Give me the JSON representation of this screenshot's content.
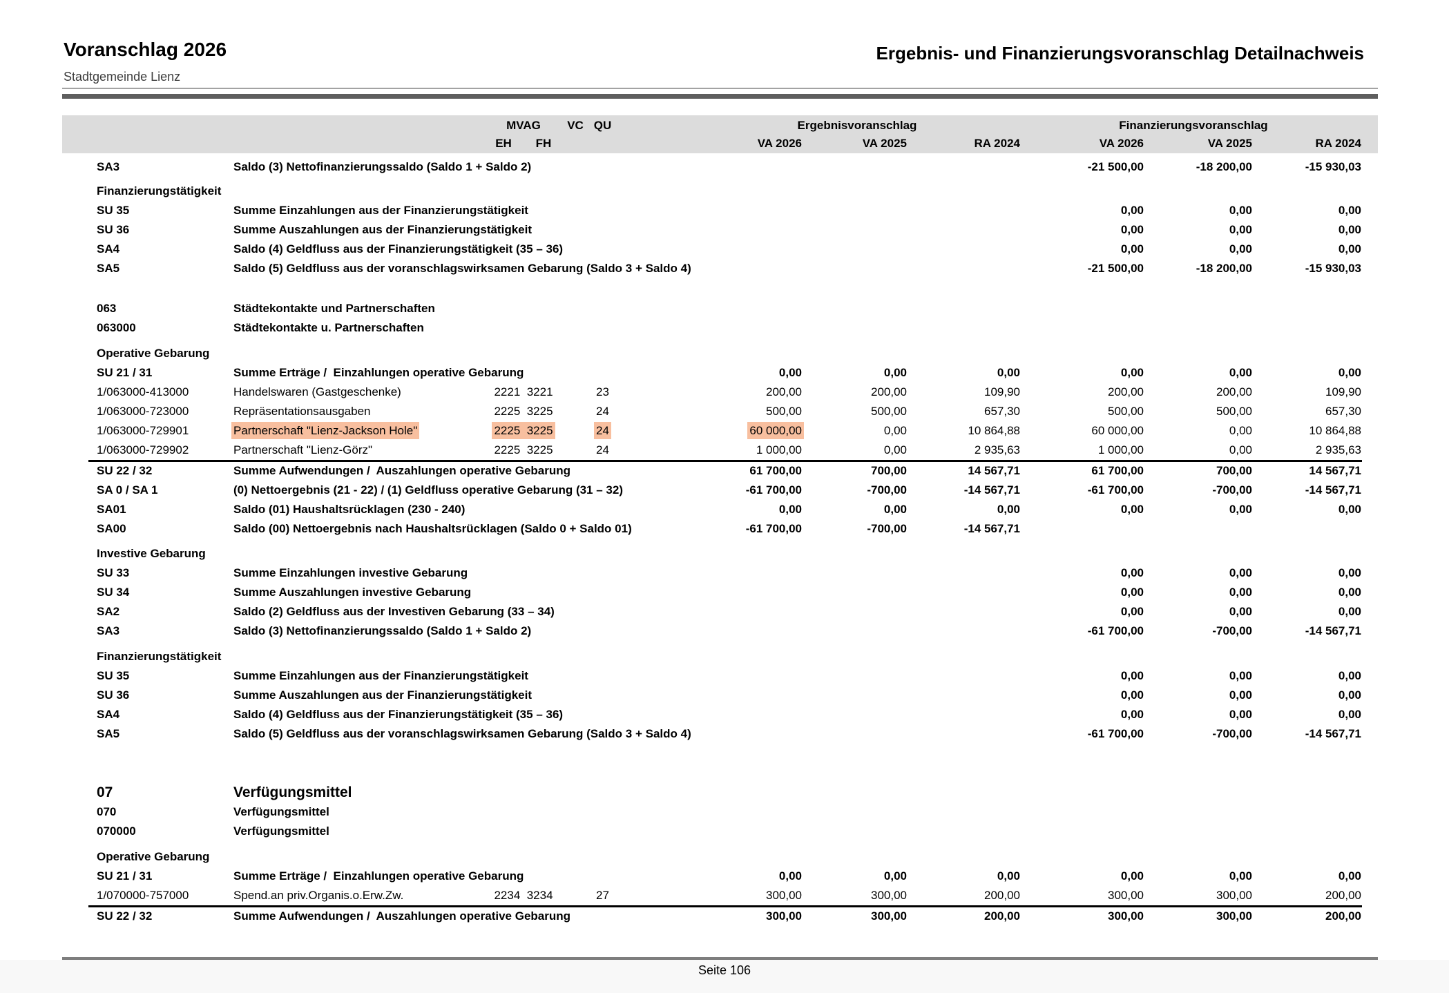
{
  "header": {
    "title": "Voranschlag 2026",
    "subtitle": "Stadtgemeinde Lienz",
    "report_title": "Ergebnis- und Finanzierungsvoranschlag Detailnachweis"
  },
  "colors": {
    "highlight": "#f8bf9f",
    "header_band": "#dcdcdc"
  },
  "table": {
    "header": {
      "mvag": "MVAG",
      "vc": "VC",
      "qu": "QU",
      "eh": "EH",
      "fh": "FH",
      "group_ergebnis": "Ergebnisvoranschlag",
      "group_finanzierung": "Finanzierungsvoranschlag",
      "cols": [
        "VA 2026",
        "VA 2025",
        "RA 2024",
        "VA 2026",
        "VA 2025",
        "RA 2024"
      ]
    },
    "rows": [
      {
        "t": "row",
        "gap": 6,
        "bold": true,
        "code": "SA3",
        "desc": "Saldo (3) Nettofinanzierungssaldo (Saldo 1 + Saldo 2)",
        "v": [
          "",
          "",
          "",
          "-21 500,00",
          "-18 200,00",
          "-15 930,03"
        ]
      },
      {
        "t": "head",
        "gap": 7,
        "label": "Finanzierungstätigkeit"
      },
      {
        "t": "row",
        "bold": true,
        "code": "SU 35",
        "desc": "Summe Einzahlungen aus der Finanzierungstätigkeit",
        "v": [
          "",
          "",
          "",
          "0,00",
          "0,00",
          "0,00"
        ]
      },
      {
        "t": "row",
        "bold": true,
        "code": "SU 36",
        "desc": "Summe Auszahlungen aus der Finanzierungstätigkeit",
        "v": [
          "",
          "",
          "",
          "0,00",
          "0,00",
          "0,00"
        ]
      },
      {
        "t": "row",
        "bold": true,
        "code": "SA4",
        "desc": "Saldo (4) Geldfluss aus der Finanzierungstätigkeit (35 – 36)",
        "v": [
          "",
          "",
          "",
          "0,00",
          "0,00",
          "0,00"
        ]
      },
      {
        "t": "row",
        "bold": true,
        "code": "SA5",
        "desc": "Saldo (5) Geldfluss aus der voranschlagswirksamen Gebarung (Saldo 3 + Saldo 4)",
        "v": [
          "",
          "",
          "",
          "-21 500,00",
          "-18 200,00",
          "-15 930,03"
        ]
      },
      {
        "t": "row",
        "gap": 30,
        "bold": true,
        "code": "063",
        "desc": "Städtekontakte und Partnerschaften",
        "v": [
          "",
          "",
          "",
          "",
          "",
          ""
        ]
      },
      {
        "t": "row",
        "bold": true,
        "code": "063000",
        "desc": "Städtekontakte u. Partnerschaften",
        "v": [
          "",
          "",
          "",
          "",
          "",
          ""
        ]
      },
      {
        "t": "head",
        "gap": 9,
        "label": "Operative Gebarung"
      },
      {
        "t": "row",
        "bold": true,
        "code": "SU 21 / 31",
        "desc": "Summe Erträge /  Einzahlungen operative Gebarung",
        "v": [
          "0,00",
          "0,00",
          "0,00",
          "0,00",
          "0,00",
          "0,00"
        ]
      },
      {
        "t": "row",
        "code": "1/063000-413000",
        "desc": "Handelswaren (Gastgeschenke)",
        "eh": "2221",
        "fh": "3221",
        "qu": "23",
        "v": [
          "200,00",
          "200,00",
          "109,90",
          "200,00",
          "200,00",
          "109,90"
        ]
      },
      {
        "t": "row",
        "code": "1/063000-723000",
        "desc": "Repräsentationsausgaben",
        "eh": "2225",
        "fh": "3225",
        "qu": "24",
        "v": [
          "500,00",
          "500,00",
          "657,30",
          "500,00",
          "500,00",
          "657,30"
        ]
      },
      {
        "t": "row",
        "hl": true,
        "code": "1/063000-729901",
        "desc": "Partnerschaft \"Lienz-Jackson Hole\"",
        "eh": "2225",
        "fh": "3225",
        "qu": "24",
        "v": [
          "60 000,00",
          "0,00",
          "10 864,88",
          "60 000,00",
          "0,00",
          "10 864,88"
        ]
      },
      {
        "t": "row",
        "code": "1/063000-729902",
        "desc": "Partnerschaft \"Lienz-Görz\"",
        "eh": "2225",
        "fh": "3225",
        "qu": "24",
        "v": [
          "1 000,00",
          "0,00",
          "2 935,63",
          "1 000,00",
          "0,00",
          "2 935,63"
        ]
      },
      {
        "t": "row",
        "gap": 2,
        "line": true,
        "bold": true,
        "code": "SU 22 / 32",
        "desc": "Summe Aufwendungen /  Auszahlungen operative Gebarung",
        "v": [
          "61 700,00",
          "700,00",
          "14 567,71",
          "61 700,00",
          "700,00",
          "14 567,71"
        ]
      },
      {
        "t": "row",
        "bold": true,
        "code": "SA 0 / SA 1",
        "desc": "(0) Nettoergebnis (21 - 22) / (1) Geldfluss operative Gebarung (31 – 32)",
        "v": [
          "-61 700,00",
          "-700,00",
          "-14 567,71",
          "-61 700,00",
          "-700,00",
          "-14 567,71"
        ]
      },
      {
        "t": "row",
        "bold": true,
        "code": "SA01",
        "desc": "Saldo (01) Haushaltsrücklagen (230 - 240)",
        "v": [
          "0,00",
          "0,00",
          "0,00",
          "0,00",
          "0,00",
          "0,00"
        ]
      },
      {
        "t": "row",
        "bold": true,
        "code": "SA00",
        "desc": "Saldo (00) Nettoergebnis nach Haushaltsrücklagen (Saldo 0 + Saldo 01)",
        "v": [
          "-61 700,00",
          "-700,00",
          "-14 567,71",
          "",
          "",
          ""
        ]
      },
      {
        "t": "head",
        "gap": 8,
        "label": "Investive Gebarung"
      },
      {
        "t": "row",
        "bold": true,
        "code": "SU 33",
        "desc": "Summe Einzahlungen investive Gebarung",
        "v": [
          "",
          "",
          "",
          "0,00",
          "0,00",
          "0,00"
        ]
      },
      {
        "t": "row",
        "bold": true,
        "code": "SU 34",
        "desc": "Summe Auszahlungen investive Gebarung",
        "v": [
          "",
          "",
          "",
          "0,00",
          "0,00",
          "0,00"
        ]
      },
      {
        "t": "row",
        "bold": true,
        "code": "SA2",
        "desc": "Saldo (2) Geldfluss aus der Investiven Gebarung (33 – 34)",
        "v": [
          "",
          "",
          "",
          "0,00",
          "0,00",
          "0,00"
        ]
      },
      {
        "t": "row",
        "bold": true,
        "code": "SA3",
        "desc": "Saldo (3) Nettofinanzierungssaldo (Saldo 1 + Saldo 2)",
        "v": [
          "",
          "",
          "",
          "-61 700,00",
          "-700,00",
          "-14 567,71"
        ]
      },
      {
        "t": "head",
        "gap": 9,
        "label": "Finanzierungstätigkeit"
      },
      {
        "t": "row",
        "bold": true,
        "code": "SU 35",
        "desc": "Summe Einzahlungen aus der Finanzierungstätigkeit",
        "v": [
          "",
          "",
          "",
          "0,00",
          "0,00",
          "0,00"
        ]
      },
      {
        "t": "row",
        "bold": true,
        "code": "SU 36",
        "desc": "Summe Auszahlungen aus der Finanzierungstätigkeit",
        "v": [
          "",
          "",
          "",
          "0,00",
          "0,00",
          "0,00"
        ]
      },
      {
        "t": "row",
        "bold": true,
        "code": "SA4",
        "desc": "Saldo (4) Geldfluss aus der Finanzierungstätigkeit (35 – 36)",
        "v": [
          "",
          "",
          "",
          "0,00",
          "0,00",
          "0,00"
        ]
      },
      {
        "t": "row",
        "bold": true,
        "code": "SA5",
        "desc": "Saldo (5) Geldfluss aus der voranschlagswirksamen Gebarung (Saldo 3 + Saldo 4)",
        "v": [
          "",
          "",
          "",
          "-61 700,00",
          "-700,00",
          "-14 567,71"
        ]
      },
      {
        "t": "row",
        "gap": 57,
        "bold": true,
        "big": true,
        "code": "07",
        "desc": "Verfügungsmittel",
        "v": [
          "",
          "",
          "",
          "",
          "",
          ""
        ]
      },
      {
        "t": "row",
        "bold": true,
        "code": "070",
        "desc": "Verfügungsmittel",
        "v": [
          "",
          "",
          "",
          "",
          "",
          ""
        ]
      },
      {
        "t": "row",
        "bold": true,
        "code": "070000",
        "desc": "Verfügungsmittel",
        "v": [
          "",
          "",
          "",
          "",
          "",
          ""
        ]
      },
      {
        "t": "head",
        "gap": 9,
        "label": "Operative Gebarung"
      },
      {
        "t": "row",
        "bold": true,
        "code": "SU 21 / 31",
        "desc": "Summe Erträge /  Einzahlungen operative Gebarung",
        "v": [
          "0,00",
          "0,00",
          "0,00",
          "0,00",
          "0,00",
          "0,00"
        ]
      },
      {
        "t": "row",
        "code": "1/070000-757000",
        "desc": "Spend.an priv.Organis.o.Erw.Zw.",
        "eh": "2234",
        "fh": "3234",
        "qu": "27",
        "v": [
          "300,00",
          "300,00",
          "200,00",
          "300,00",
          "300,00",
          "200,00"
        ]
      },
      {
        "t": "row",
        "gap": 2,
        "line": true,
        "bold": true,
        "code": "SU 22 / 32",
        "desc": "Summe Aufwendungen /  Auszahlungen operative Gebarung",
        "v": [
          "300,00",
          "300,00",
          "200,00",
          "300,00",
          "300,00",
          "200,00"
        ]
      }
    ]
  },
  "footer": {
    "page_label": "Seite 106"
  }
}
